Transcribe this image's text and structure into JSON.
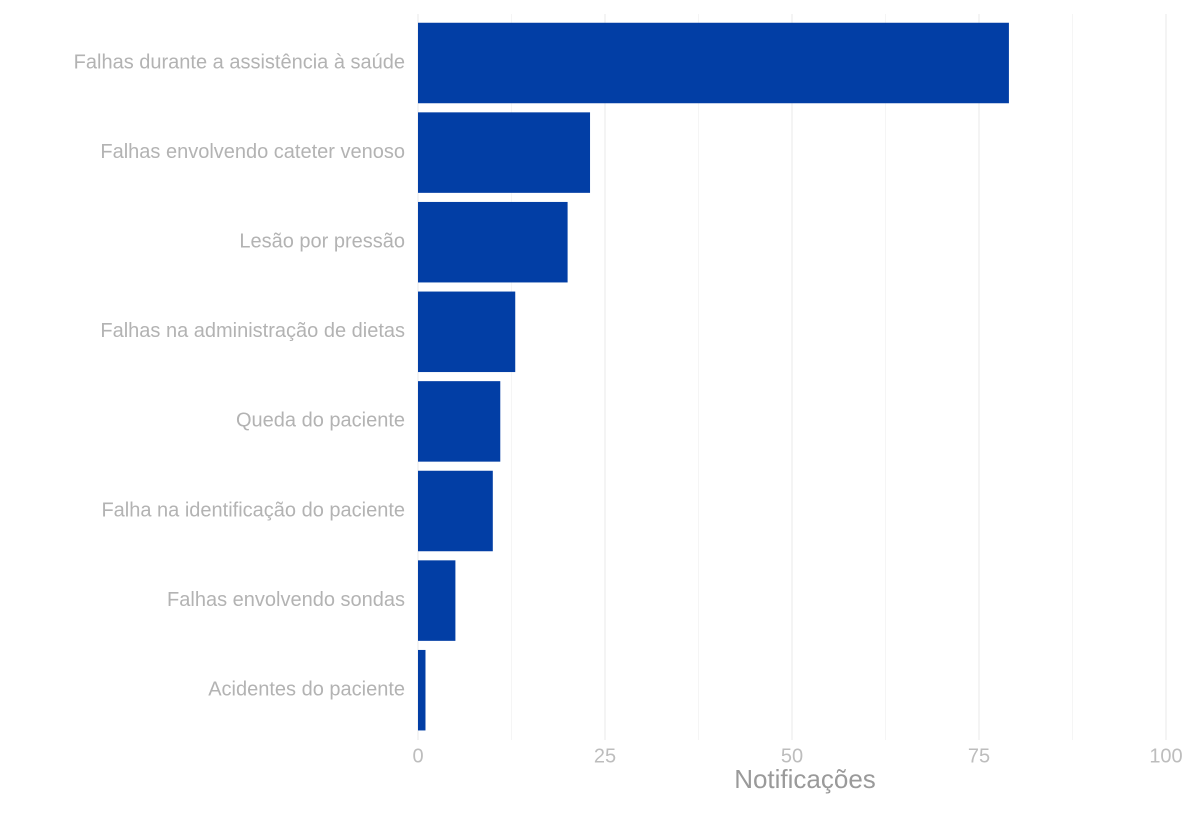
{
  "chart_data": {
    "type": "bar",
    "orientation": "horizontal",
    "categories": [
      "Falhas durante a assistência à saúde",
      "Falhas envolvendo cateter venoso",
      "Lesão por pressão",
      "Falhas na administração de dietas",
      "Queda do paciente",
      "Falha na identificação do paciente",
      "Falhas envolvendo sondas",
      "Acidentes do paciente"
    ],
    "values": [
      79,
      23,
      20,
      13,
      11,
      10,
      5,
      1
    ],
    "xlabel": "Notificações",
    "ylabel": "",
    "title": "",
    "xlim": [
      0,
      100
    ],
    "xticks": [
      "0",
      "25",
      "50",
      "75",
      "100"
    ],
    "grid": true,
    "bar_color": "#023ea5",
    "legend": "none"
  }
}
